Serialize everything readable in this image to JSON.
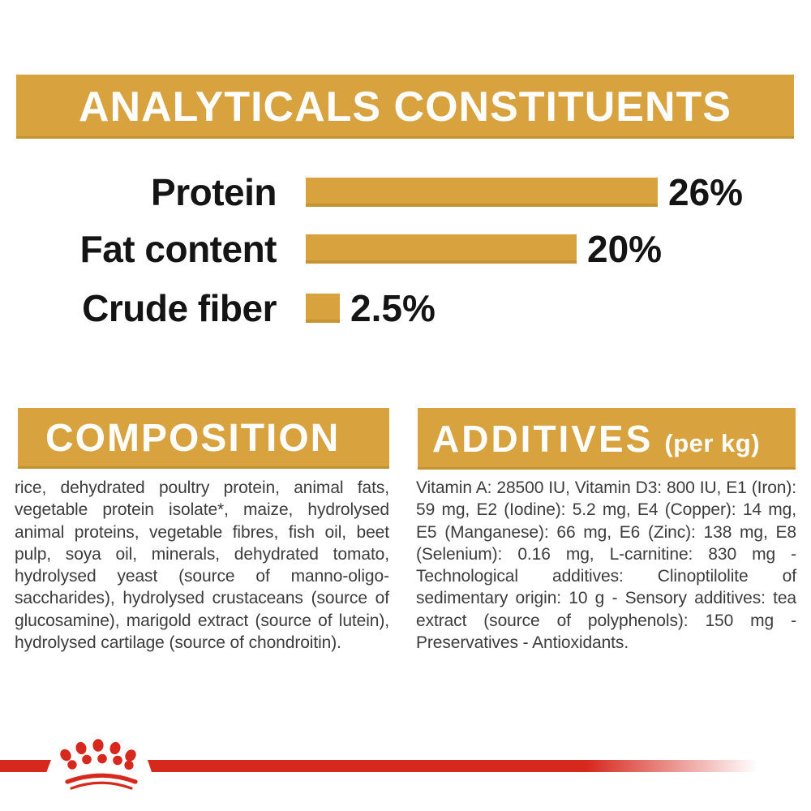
{
  "header": {
    "title": "ANALYTICALS CONSTITUENTS"
  },
  "chart_data": {
    "type": "bar",
    "orientation": "horizontal",
    "categories": [
      "Protein",
      "Fat content",
      "Crude fiber"
    ],
    "values": [
      26,
      20,
      2.5
    ],
    "value_labels": [
      "26%",
      "20%",
      "2.5%"
    ],
    "unit": "%",
    "xlim": [
      0,
      26
    ],
    "bar_color": "#D8A33E",
    "grid": false,
    "legend": "none"
  },
  "composition": {
    "title": "COMPOSITION",
    "body": "rice, dehydrated poultry protein, animal fats, vegetable protein isolate*, maize, hydrolysed animal proteins, vegetable fibres, fish oil, beet pulp, soya oil, minerals, dehydrated tomato, hydrolysed yeast (source of manno-oligo-saccharides), hydrolysed crustaceans (source of glucosamine), marigold extract (source of lutein), hydrolysed cartilage (source of chondroitin)."
  },
  "additives": {
    "title": "ADDITIVES",
    "subtitle": "(per kg)",
    "body": "Vitamin A: 28500 IU, Vitamin D3: 800 IU, E1 (Iron): 59 mg, E2 (Iodine): 5.2 mg, E4 (Copper): 14 mg, E5 (Manganese): 66 mg, E6 (Zinc): 138 mg, E8 (Selenium): 0.16 mg, L-carnitine: 830 mg - Technological additives: Clinoptilolite of sedimentary origin: 10 g - Sensory additives: tea extract (source of polyphenols): 150 mg - Preservatives - Antioxidants.",
    "body_start": "Vitamin A: 28500 IU, Vitamin D3: 800 IU,"
  },
  "footer": {
    "logo": "royal-canin-crown-logo"
  },
  "colors": {
    "gold": "#D8A33E",
    "red": "#D7281E",
    "label_text": "#141414",
    "body_text": "#3C3C3C",
    "banner_text": "#FFFFFF",
    "background": "#FFFFFF"
  }
}
